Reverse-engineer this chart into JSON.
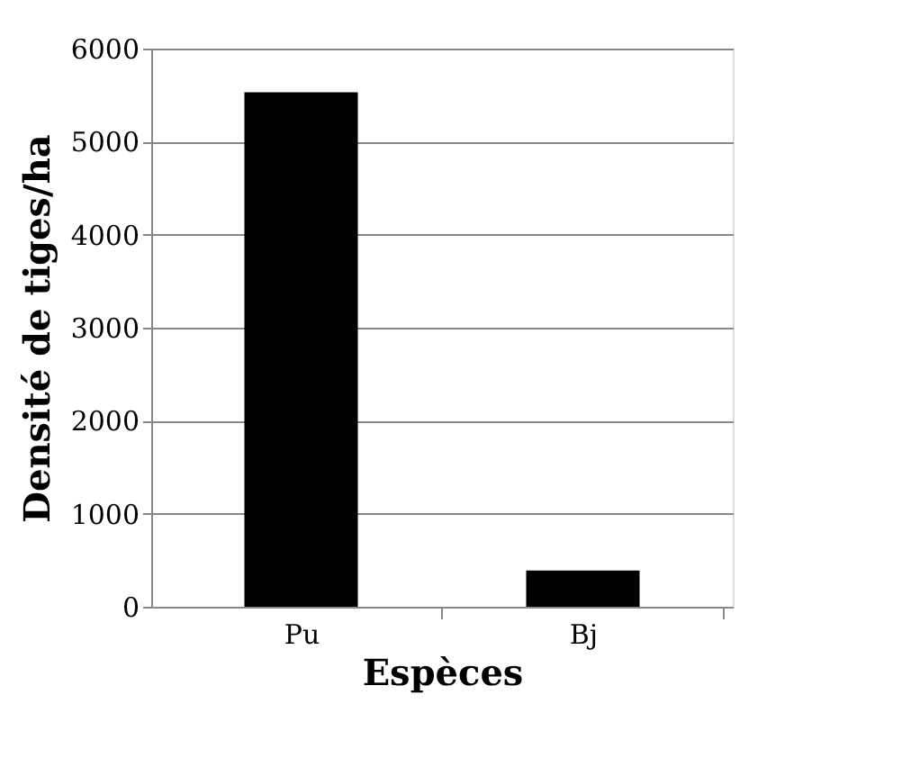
{
  "chart_data": {
    "type": "bar",
    "xlabel": "Espèces",
    "ylabel": "Densité de tiges/ha",
    "categories": [
      "Pu",
      "Bj"
    ],
    "values": [
      5530,
      390
    ],
    "color": "#000000",
    "ylim": [
      0,
      6000
    ],
    "yticks": [
      0,
      1000,
      2000,
      3000,
      4000,
      5000,
      6000
    ],
    "grid": "y"
  }
}
